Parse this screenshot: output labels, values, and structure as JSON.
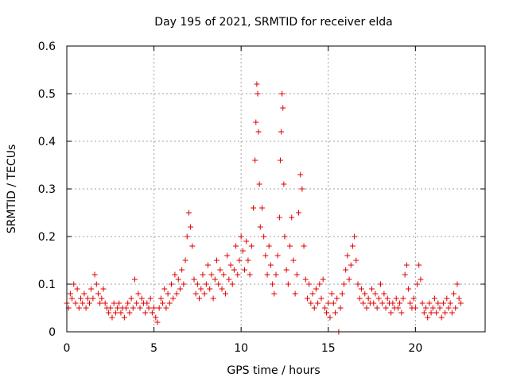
{
  "chart_data": {
    "type": "scatter",
    "title": "Day 195 of 2021, SRMTID for receiver elda",
    "xlabel": "GPS time / hours",
    "ylabel": "SRMTID / TECUs",
    "xlim": [
      0,
      24
    ],
    "ylim": [
      0,
      0.6
    ],
    "x_ticks": [
      0,
      5,
      10,
      15,
      20
    ],
    "x_tick_labels": [
      "0",
      "5",
      "10",
      "15",
      "20"
    ],
    "y_ticks": [
      0,
      0.1,
      0.2,
      0.3,
      0.4,
      0.5,
      0.6
    ],
    "y_tick_labels": [
      "0",
      "0.1",
      "0.2",
      "0.3",
      "0.4",
      "0.5",
      "0.6"
    ],
    "grid": true,
    "marker": "+",
    "color": "#e00000",
    "series": [
      {
        "name": "SRMTID",
        "points": [
          [
            0.0,
            0.06
          ],
          [
            0.1,
            0.05
          ],
          [
            0.2,
            0.08
          ],
          [
            0.3,
            0.07
          ],
          [
            0.4,
            0.1
          ],
          [
            0.5,
            0.06
          ],
          [
            0.6,
            0.09
          ],
          [
            0.7,
            0.05
          ],
          [
            0.8,
            0.07
          ],
          [
            0.9,
            0.06
          ],
          [
            1.0,
            0.08
          ],
          [
            1.1,
            0.05
          ],
          [
            1.2,
            0.07
          ],
          [
            1.3,
            0.06
          ],
          [
            1.4,
            0.09
          ],
          [
            1.5,
            0.07
          ],
          [
            1.6,
            0.12
          ],
          [
            1.7,
            0.1
          ],
          [
            1.8,
            0.08
          ],
          [
            1.9,
            0.06
          ],
          [
            2.0,
            0.07
          ],
          [
            2.1,
            0.09
          ],
          [
            2.2,
            0.06
          ],
          [
            2.3,
            0.05
          ],
          [
            2.4,
            0.04
          ],
          [
            2.5,
            0.05
          ],
          [
            2.6,
            0.03
          ],
          [
            2.7,
            0.06
          ],
          [
            2.8,
            0.04
          ],
          [
            2.9,
            0.05
          ],
          [
            3.0,
            0.06
          ],
          [
            3.1,
            0.04
          ],
          [
            3.2,
            0.05
          ],
          [
            3.3,
            0.03
          ],
          [
            3.4,
            0.05
          ],
          [
            3.5,
            0.06
          ],
          [
            3.6,
            0.04
          ],
          [
            3.7,
            0.07
          ],
          [
            3.8,
            0.05
          ],
          [
            3.9,
            0.11
          ],
          [
            4.0,
            0.06
          ],
          [
            4.1,
            0.08
          ],
          [
            4.2,
            0.05
          ],
          [
            4.3,
            0.07
          ],
          [
            4.4,
            0.06
          ],
          [
            4.5,
            0.04
          ],
          [
            4.6,
            0.06
          ],
          [
            4.7,
            0.05
          ],
          [
            4.8,
            0.07
          ],
          [
            4.9,
            0.04
          ],
          [
            5.0,
            0.05
          ],
          [
            5.1,
            0.03
          ],
          [
            5.2,
            0.02
          ],
          [
            5.3,
            0.05
          ],
          [
            5.4,
            0.07
          ],
          [
            5.5,
            0.06
          ],
          [
            5.6,
            0.09
          ],
          [
            5.7,
            0.05
          ],
          [
            5.8,
            0.08
          ],
          [
            5.9,
            0.06
          ],
          [
            6.0,
            0.1
          ],
          [
            6.1,
            0.07
          ],
          [
            6.2,
            0.12
          ],
          [
            6.3,
            0.08
          ],
          [
            6.4,
            0.11
          ],
          [
            6.5,
            0.09
          ],
          [
            6.6,
            0.13
          ],
          [
            6.7,
            0.1
          ],
          [
            6.8,
            0.15
          ],
          [
            6.9,
            0.2
          ],
          [
            7.0,
            0.25
          ],
          [
            7.1,
            0.22
          ],
          [
            7.2,
            0.18
          ],
          [
            7.3,
            0.11
          ],
          [
            7.4,
            0.08
          ],
          [
            7.5,
            0.1
          ],
          [
            7.6,
            0.07
          ],
          [
            7.7,
            0.09
          ],
          [
            7.8,
            0.12
          ],
          [
            7.9,
            0.08
          ],
          [
            8.0,
            0.1
          ],
          [
            8.1,
            0.14
          ],
          [
            8.2,
            0.09
          ],
          [
            8.3,
            0.12
          ],
          [
            8.4,
            0.07
          ],
          [
            8.5,
            0.11
          ],
          [
            8.6,
            0.15
          ],
          [
            8.7,
            0.1
          ],
          [
            8.8,
            0.13
          ],
          [
            8.9,
            0.09
          ],
          [
            9.0,
            0.12
          ],
          [
            9.1,
            0.08
          ],
          [
            9.2,
            0.16
          ],
          [
            9.3,
            0.11
          ],
          [
            9.4,
            0.14
          ],
          [
            9.5,
            0.1
          ],
          [
            9.6,
            0.13
          ],
          [
            9.7,
            0.18
          ],
          [
            9.8,
            0.12
          ],
          [
            9.9,
            0.15
          ],
          [
            10.0,
            0.2
          ],
          [
            10.1,
            0.17
          ],
          [
            10.2,
            0.13
          ],
          [
            10.3,
            0.19
          ],
          [
            10.4,
            0.15
          ],
          [
            10.5,
            0.12
          ],
          [
            10.6,
            0.18
          ],
          [
            10.7,
            0.26
          ],
          [
            10.8,
            0.36
          ],
          [
            10.85,
            0.44
          ],
          [
            10.9,
            0.52
          ],
          [
            10.95,
            0.5
          ],
          [
            11.0,
            0.42
          ],
          [
            11.05,
            0.31
          ],
          [
            11.1,
            0.22
          ],
          [
            11.2,
            0.26
          ],
          [
            11.3,
            0.2
          ],
          [
            11.4,
            0.16
          ],
          [
            11.5,
            0.12
          ],
          [
            11.6,
            0.18
          ],
          [
            11.7,
            0.14
          ],
          [
            11.8,
            0.1
          ],
          [
            11.9,
            0.08
          ],
          [
            12.0,
            0.12
          ],
          [
            12.1,
            0.16
          ],
          [
            12.2,
            0.24
          ],
          [
            12.25,
            0.36
          ],
          [
            12.3,
            0.42
          ],
          [
            12.35,
            0.5
          ],
          [
            12.4,
            0.47
          ],
          [
            12.45,
            0.31
          ],
          [
            12.5,
            0.2
          ],
          [
            12.6,
            0.13
          ],
          [
            12.7,
            0.1
          ],
          [
            12.8,
            0.18
          ],
          [
            12.9,
            0.24
          ],
          [
            13.0,
            0.15
          ],
          [
            13.1,
            0.08
          ],
          [
            13.2,
            0.12
          ],
          [
            13.3,
            0.25
          ],
          [
            13.4,
            0.33
          ],
          [
            13.5,
            0.3
          ],
          [
            13.6,
            0.18
          ],
          [
            13.7,
            0.11
          ],
          [
            13.8,
            0.07
          ],
          [
            13.9,
            0.1
          ],
          [
            14.0,
            0.06
          ],
          [
            14.1,
            0.08
          ],
          [
            14.2,
            0.05
          ],
          [
            14.3,
            0.09
          ],
          [
            14.4,
            0.06
          ],
          [
            14.5,
            0.1
          ],
          [
            14.6,
            0.07
          ],
          [
            14.7,
            0.11
          ],
          [
            14.8,
            0.05
          ],
          [
            14.9,
            0.04
          ],
          [
            15.0,
            0.06
          ],
          [
            15.1,
            0.03
          ],
          [
            15.2,
            0.08
          ],
          [
            15.3,
            0.06
          ],
          [
            15.4,
            0.04
          ],
          [
            15.5,
            0.07
          ],
          [
            15.6,
            0.0
          ],
          [
            15.7,
            0.05
          ],
          [
            15.8,
            0.08
          ],
          [
            15.9,
            0.1
          ],
          [
            16.0,
            0.13
          ],
          [
            16.1,
            0.16
          ],
          [
            16.2,
            0.11
          ],
          [
            16.3,
            0.14
          ],
          [
            16.4,
            0.18
          ],
          [
            16.5,
            0.2
          ],
          [
            16.6,
            0.15
          ],
          [
            16.7,
            0.1
          ],
          [
            16.8,
            0.07
          ],
          [
            16.9,
            0.09
          ],
          [
            17.0,
            0.06
          ],
          [
            17.1,
            0.08
          ],
          [
            17.2,
            0.05
          ],
          [
            17.3,
            0.07
          ],
          [
            17.4,
            0.06
          ],
          [
            17.5,
            0.09
          ],
          [
            17.6,
            0.06
          ],
          [
            17.7,
            0.08
          ],
          [
            17.8,
            0.05
          ],
          [
            17.9,
            0.07
          ],
          [
            18.0,
            0.1
          ],
          [
            18.1,
            0.06
          ],
          [
            18.2,
            0.08
          ],
          [
            18.3,
            0.05
          ],
          [
            18.4,
            0.07
          ],
          [
            18.5,
            0.06
          ],
          [
            18.6,
            0.04
          ],
          [
            18.7,
            0.06
          ],
          [
            18.8,
            0.05
          ],
          [
            18.9,
            0.07
          ],
          [
            19.0,
            0.05
          ],
          [
            19.1,
            0.06
          ],
          [
            19.2,
            0.04
          ],
          [
            19.3,
            0.07
          ],
          [
            19.4,
            0.12
          ],
          [
            19.5,
            0.14
          ],
          [
            19.6,
            0.09
          ],
          [
            19.7,
            0.06
          ],
          [
            19.8,
            0.05
          ],
          [
            19.9,
            0.07
          ],
          [
            20.0,
            0.05
          ],
          [
            20.1,
            0.1
          ],
          [
            20.2,
            0.14
          ],
          [
            20.3,
            0.11
          ],
          [
            20.4,
            0.06
          ],
          [
            20.5,
            0.04
          ],
          [
            20.6,
            0.05
          ],
          [
            20.7,
            0.03
          ],
          [
            20.8,
            0.06
          ],
          [
            20.9,
            0.04
          ],
          [
            21.0,
            0.05
          ],
          [
            21.1,
            0.07
          ],
          [
            21.2,
            0.04
          ],
          [
            21.3,
            0.06
          ],
          [
            21.4,
            0.05
          ],
          [
            21.5,
            0.03
          ],
          [
            21.6,
            0.06
          ],
          [
            21.7,
            0.04
          ],
          [
            21.8,
            0.07
          ],
          [
            21.9,
            0.05
          ],
          [
            22.0,
            0.06
          ],
          [
            22.1,
            0.04
          ],
          [
            22.2,
            0.08
          ],
          [
            22.3,
            0.05
          ],
          [
            22.4,
            0.1
          ],
          [
            22.5,
            0.07
          ],
          [
            22.6,
            0.06
          ]
        ]
      }
    ]
  }
}
